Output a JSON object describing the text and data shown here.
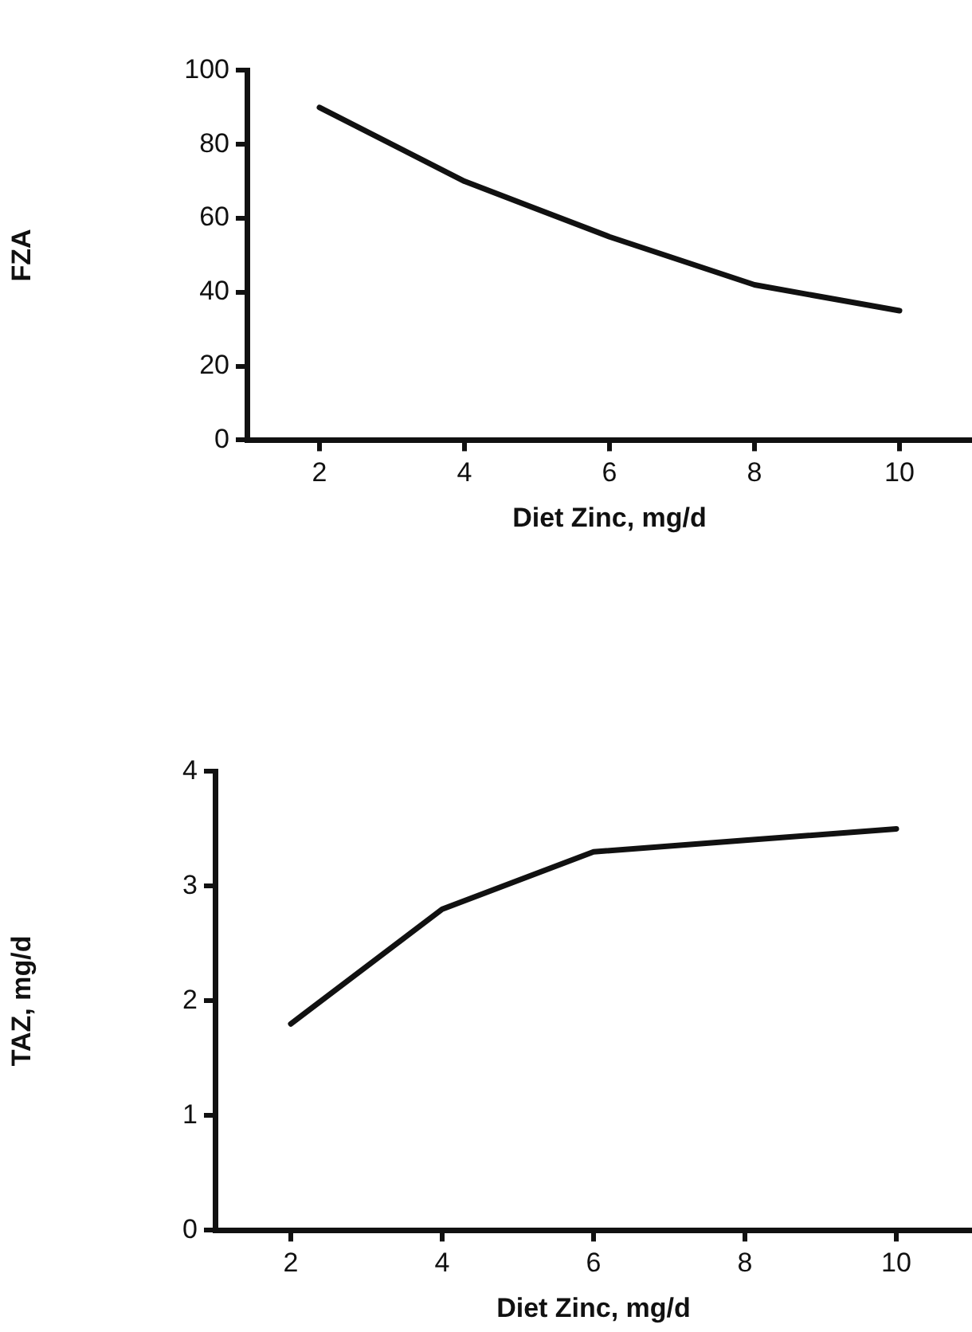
{
  "chart_data": [
    {
      "type": "line",
      "xlabel": "Diet Zinc, mg/d",
      "ylabel": "FZA",
      "x": [
        2,
        4,
        6,
        8,
        10
      ],
      "series": [
        {
          "color": "#111111",
          "values": [
            90,
            70,
            55,
            42,
            35
          ]
        }
      ],
      "xlim": [
        1,
        11
      ],
      "xticks": [
        2,
        4,
        6,
        8,
        10
      ],
      "ylim": [
        0,
        100
      ],
      "yticks": [
        0,
        20,
        40,
        60,
        80,
        100
      ],
      "grid": false,
      "legend": false,
      "marker": "none",
      "line_style": "solid"
    },
    {
      "type": "line",
      "xlabel": "Diet Zinc, mg/d",
      "ylabel": "TAZ, mg/d",
      "x": [
        2,
        4,
        6,
        8,
        10
      ],
      "series": [
        {
          "color": "#111111",
          "values": [
            1.8,
            2.8,
            3.3,
            3.4,
            3.5
          ]
        }
      ],
      "xlim": [
        1,
        11
      ],
      "xticks": [
        2,
        4,
        6,
        8,
        10
      ],
      "ylim": [
        0,
        4
      ],
      "yticks": [
        0,
        1,
        2,
        3,
        4
      ],
      "grid": false,
      "legend": false,
      "marker": "none",
      "line_style": "solid"
    }
  ]
}
